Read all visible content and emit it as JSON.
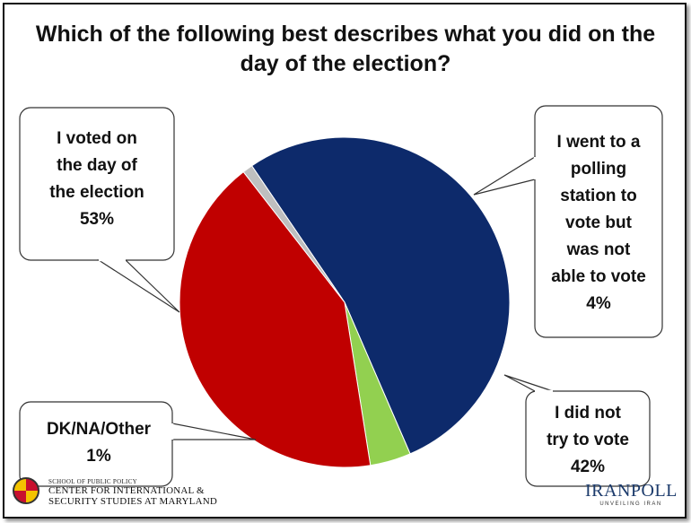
{
  "chart_data": {
    "type": "pie",
    "title": "Which of the following best describes what you did on the day of the election?",
    "slices": [
      {
        "label_lines": [
          "I voted on",
          "the day of",
          "the election",
          "53%"
        ],
        "value": 53,
        "color": "#0d2a6b"
      },
      {
        "label_lines": [
          "I went to a",
          "polling",
          "station to",
          "vote but",
          "was not",
          "able to vote",
          "4%"
        ],
        "value": 4,
        "color": "#92d050"
      },
      {
        "label_lines": [
          "I did not",
          "try to vote",
          "42%"
        ],
        "value": 42,
        "color": "#c00000"
      },
      {
        "label_lines": [
          "DK/NA/Other",
          "1%"
        ],
        "value": 1,
        "color": "#bfbfbf"
      }
    ]
  },
  "logos": {
    "left_small": "SCHOOL OF PUBLIC POLICY",
    "left_line1": "CENTER FOR INTERNATIONAL &",
    "left_line2": "SECURITY STUDIES AT MARYLAND",
    "right_name": "IRANPOLL",
    "right_tag": "UNVEILING IRAN"
  }
}
